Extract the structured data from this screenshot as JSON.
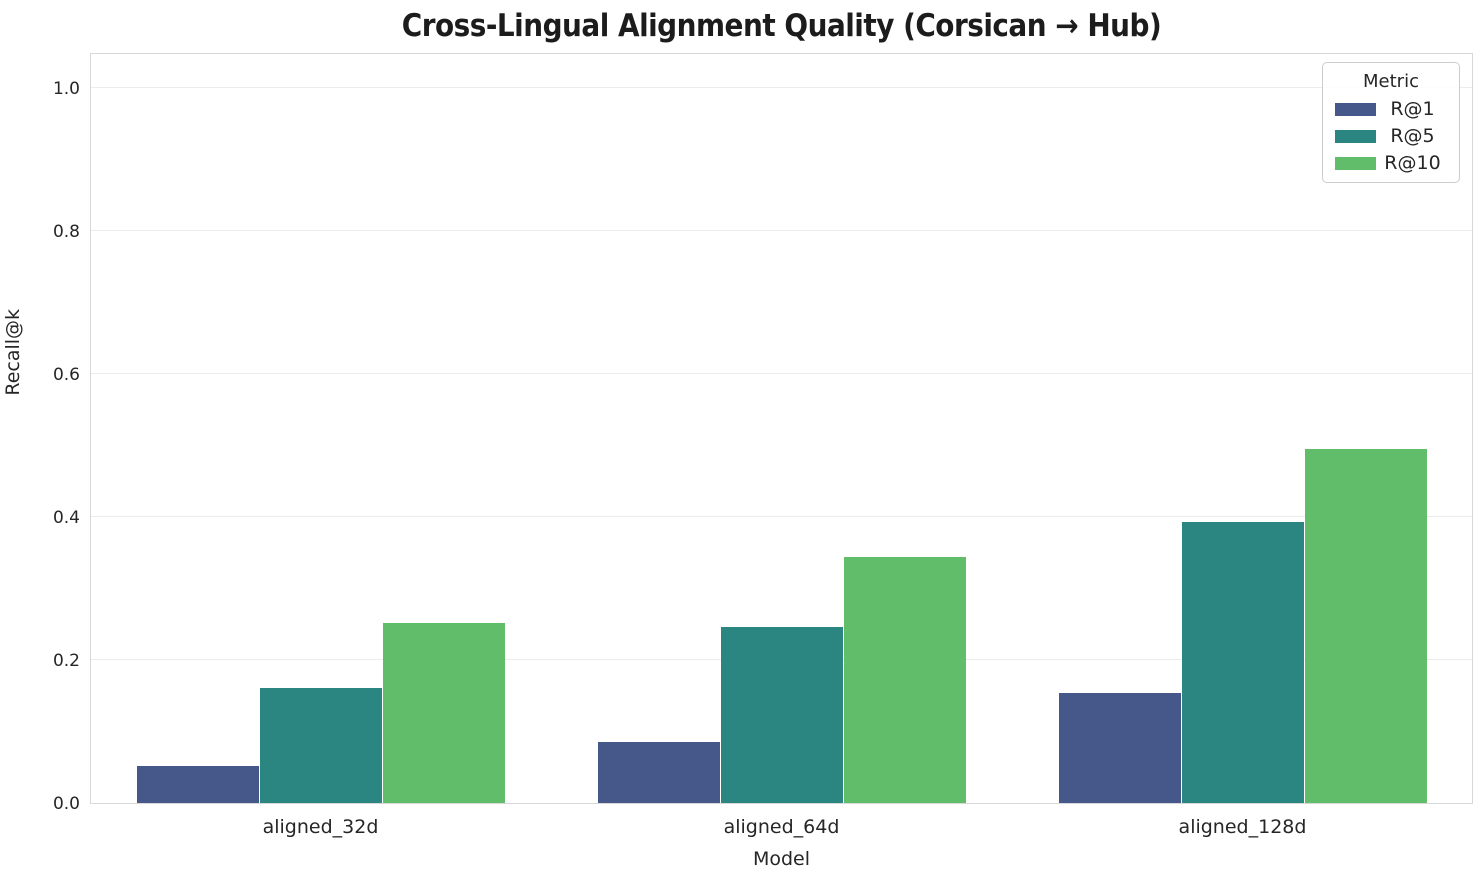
{
  "chart_data": {
    "type": "bar",
    "title": "Cross-Lingual Alignment Quality (Corsican → Hub)",
    "xlabel": "Model",
    "ylabel": "Recall@k",
    "categories": [
      "aligned_32d",
      "aligned_64d",
      "aligned_128d"
    ],
    "series": [
      {
        "name": "R@1",
        "color": "#46578A",
        "values": [
          0.052,
          0.086,
          0.154
        ]
      },
      {
        "name": "R@5",
        "color": "#2B8580",
        "values": [
          0.161,
          0.246,
          0.393
        ]
      },
      {
        "name": "R@10",
        "color": "#62BD6B",
        "values": [
          0.252,
          0.344,
          0.495
        ]
      }
    ],
    "ylim": [
      0,
      1.05
    ],
    "yticks": [
      0.0,
      0.2,
      0.4,
      0.6,
      0.8,
      1.0
    ],
    "ytick_labels": [
      "0.0",
      "0.2",
      "0.4",
      "0.6",
      "0.8",
      "1.0"
    ],
    "grid": "horizontal",
    "legend": {
      "title": "Metric",
      "position": "upper right"
    }
  },
  "style": {
    "grid_color": "#ececec",
    "spine_color": "#d8d8d8",
    "text_color": "#262626"
  }
}
